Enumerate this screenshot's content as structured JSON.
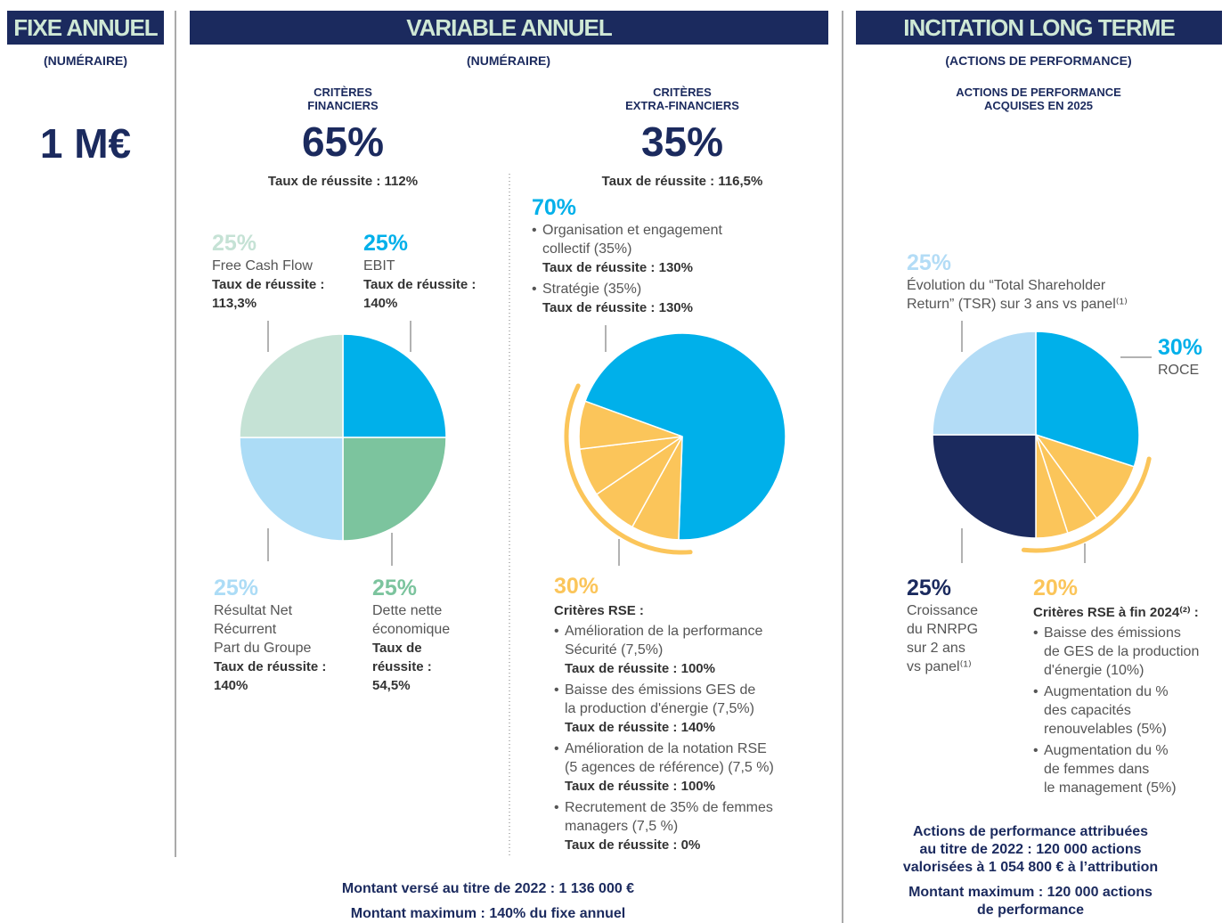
{
  "fixed": {
    "title": "FIXE ANNUEL",
    "subtitle": "(NUMÉRAIRE)",
    "amount": "1 M€"
  },
  "variable": {
    "title": "VARIABLE ANNUEL",
    "subtitle": "(NUMÉRAIRE)",
    "financial": {
      "heading": [
        "CRITÈRES",
        "FINANCIERS"
      ],
      "weight": "65%",
      "rate": "Taux de réussite : 112%",
      "pie": {
        "type": "pie",
        "groups": [
          {
            "label": "25%",
            "value": 25,
            "color": "#00b0ea",
            "segments": [
              25
            ],
            "desc": [
              "EBIT"
            ],
            "rate": [
              "Taux de réussite :",
              "140%"
            ]
          },
          {
            "label": "25%",
            "value": 25,
            "color": "#7cc49e",
            "segments": [
              25
            ],
            "desc": [
              "Dette nette",
              "économique"
            ],
            "rate": [
              "Taux de",
              "réussite :",
              "54,5%"
            ]
          },
          {
            "label": "25%",
            "value": 25,
            "color": "#acdcf6",
            "segments": [
              25
            ],
            "desc": [
              "Résultat Net",
              "Récurrent",
              "Part du Groupe"
            ],
            "rate": [
              "Taux de réussite :",
              "140%"
            ]
          },
          {
            "label": "25%",
            "value": 25,
            "color": "#c5e2d5",
            "segments": [
              25
            ],
            "desc": [
              "Free Cash Flow"
            ],
            "rate": [
              "Taux de réussite :",
              "113,3%"
            ]
          }
        ]
      }
    },
    "extra": {
      "heading": [
        "CRITÈRES",
        "EXTRA-FINANCIERS"
      ],
      "weight": "35%",
      "rate": "Taux de réussite : 116,5%",
      "pie": {
        "type": "pie",
        "groups": [
          {
            "label": "70%",
            "value": 70,
            "color": "#00b0ea",
            "segments": [
              70
            ],
            "items": [
              {
                "text": [
                  "Organisation et engagement",
                  "collectif (35%)"
                ],
                "rate": "Taux de réussite : 130%"
              },
              {
                "text": [
                  "Stratégie (35%)"
                ],
                "rate": "Taux de réussite : 130%"
              }
            ]
          },
          {
            "label": "30%",
            "value": 30,
            "color": "#fbc55a",
            "segments": [
              7.5,
              7.5,
              7.5,
              7.5
            ],
            "heading": "Critères RSE :",
            "items": [
              {
                "text": [
                  "Amélioration de la performance",
                  "Sécurité (7,5%)"
                ],
                "rate": "Taux de réussite : 100%"
              },
              {
                "text": [
                  "Baisse des émissions GES de",
                  "la production d'énergie (7,5%)"
                ],
                "rate": "Taux de réussite : 140%"
              },
              {
                "text": [
                  "Amélioration de la notation RSE",
                  "(5 agences de référence) (7,5 %)"
                ],
                "rate": "Taux de réussite : 100%"
              },
              {
                "text": [
                  "Recrutement de 35% de femmes",
                  "managers (7,5 %)"
                ],
                "rate": "Taux de réussite : 0%"
              }
            ]
          }
        ]
      }
    },
    "footer": [
      "Montant versé au titre de 2022 : 1 136 000 €",
      "Montant maximum : 140% du fixe annuel"
    ]
  },
  "long_term": {
    "title": "INCITATION LONG TERME",
    "subtitle": "(ACTIONS DE PERFORMANCE)",
    "heading": [
      "ACTIONS DE PERFORMANCE",
      "ACQUISES EN 2025"
    ],
    "pie": {
      "type": "pie",
      "groups": [
        {
          "label": "30%",
          "value": 30,
          "color": "#00b0ea",
          "segments": [
            30
          ],
          "desc": [
            "ROCE"
          ]
        },
        {
          "label": "20%",
          "value": 20,
          "color": "#fbc55a",
          "segments": [
            10,
            5,
            5
          ],
          "heading": "Critères RSE à fin 2024⁽²⁾ :",
          "items": [
            {
              "text": [
                "Baisse des émissions",
                "de GES de la production",
                "d'énergie (10%)"
              ]
            },
            {
              "text": [
                "Augmentation du %",
                "des capacités",
                "renouvelables (5%)"
              ]
            },
            {
              "text": [
                "Augmentation du %",
                "de femmes dans",
                "le management (5%)"
              ]
            }
          ]
        },
        {
          "label": "25%",
          "value": 25,
          "color": "#1b2a5e",
          "segments": [
            25
          ],
          "desc": [
            "Croissance",
            "du RNRPG",
            "sur 2 ans",
            "vs panel⁽¹⁾"
          ]
        },
        {
          "label": "25%",
          "value": 25,
          "color": "#b3dcf6",
          "segments": [
            25
          ],
          "desc": [
            "Évolution du “Total Shareholder",
            "Return” (TSR) sur 3 ans vs panel⁽¹⁾"
          ]
        }
      ]
    },
    "footer": [
      "Actions de performance attribuées",
      "au titre de 2022 : 120 000 actions",
      "valorisées à 1 054 800 € à l’attribution",
      "Montant maximum : 120 000 actions",
      "de performance"
    ]
  }
}
